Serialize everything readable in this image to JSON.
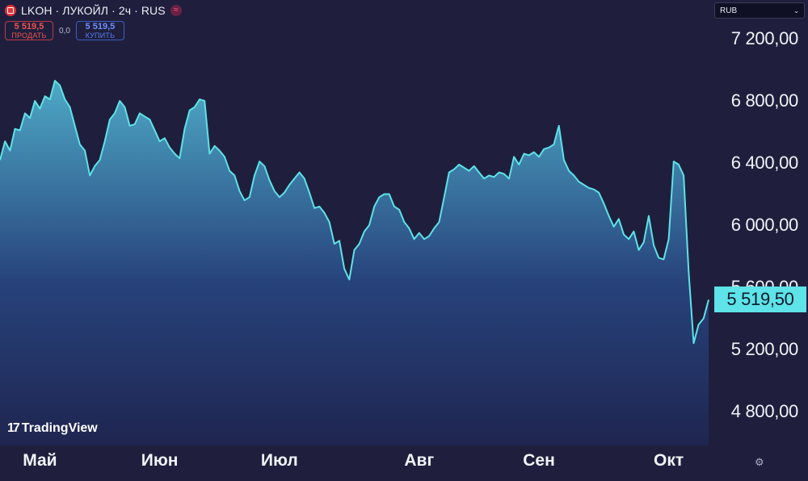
{
  "header": {
    "title": "LKOH · ЛУКОЙЛ · 2ч · RUS",
    "sell_price": "5 519,5",
    "sell_label": "ПРОДАТЬ",
    "spread": "0,0",
    "buy_price": "5 519,5",
    "buy_label": "КУПИТЬ"
  },
  "currency": {
    "selected": "RUB"
  },
  "price_axis": [
    "7 200,00",
    "6 800,00",
    "6 400,00",
    "6 000,00",
    "5 600,00",
    "5 200,00",
    "4 800,00"
  ],
  "last_price": "5 519,50",
  "months": [
    "Май",
    "Июн",
    "Июл",
    "Авг",
    "Сен",
    "Окт"
  ],
  "watermark": "TradingView",
  "icons": {
    "logo": "lukoil-logo-icon",
    "status": "wave-icon",
    "dropdown": "chevron-down-icon",
    "settings": "settings-icon"
  },
  "colors": {
    "line": "#5de3e8",
    "sell": "#ef5350",
    "buy": "#5a7cf0",
    "background": "#1f1f3d"
  },
  "chart_data": {
    "type": "area",
    "ylim": [
      4700,
      7350
    ],
    "x_tick_index": [
      8,
      32,
      56,
      84,
      108,
      134
    ],
    "values": [
      6420,
      6540,
      6480,
      6620,
      6610,
      6720,
      6690,
      6800,
      6750,
      6830,
      6810,
      6930,
      6900,
      6810,
      6760,
      6640,
      6520,
      6480,
      6320,
      6380,
      6420,
      6540,
      6680,
      6720,
      6800,
      6760,
      6640,
      6650,
      6720,
      6700,
      6680,
      6610,
      6540,
      6560,
      6500,
      6460,
      6430,
      6620,
      6740,
      6760,
      6810,
      6800,
      6460,
      6510,
      6480,
      6440,
      6350,
      6320,
      6220,
      6160,
      6180,
      6320,
      6410,
      6380,
      6290,
      6220,
      6180,
      6210,
      6260,
      6300,
      6340,
      6300,
      6210,
      6110,
      6120,
      6080,
      6020,
      5880,
      5900,
      5720,
      5650,
      5840,
      5880,
      5960,
      6000,
      6120,
      6180,
      6200,
      6200,
      6120,
      6100,
      6020,
      5980,
      5910,
      5950,
      5910,
      5930,
      5980,
      6020,
      6180,
      6340,
      6360,
      6390,
      6370,
      6350,
      6380,
      6340,
      6300,
      6320,
      6310,
      6340,
      6330,
      6300,
      6440,
      6390,
      6460,
      6450,
      6470,
      6440,
      6490,
      6500,
      6520,
      6640,
      6420,
      6350,
      6320,
      6280,
      6260,
      6240,
      6230,
      6210,
      6140,
      6060,
      5990,
      6040,
      5940,
      5910,
      5960,
      5840,
      5890,
      6060,
      5870,
      5790,
      5780,
      5910,
      6410,
      6390,
      6320,
      5700,
      5240,
      5360,
      5400,
      5520
    ]
  }
}
